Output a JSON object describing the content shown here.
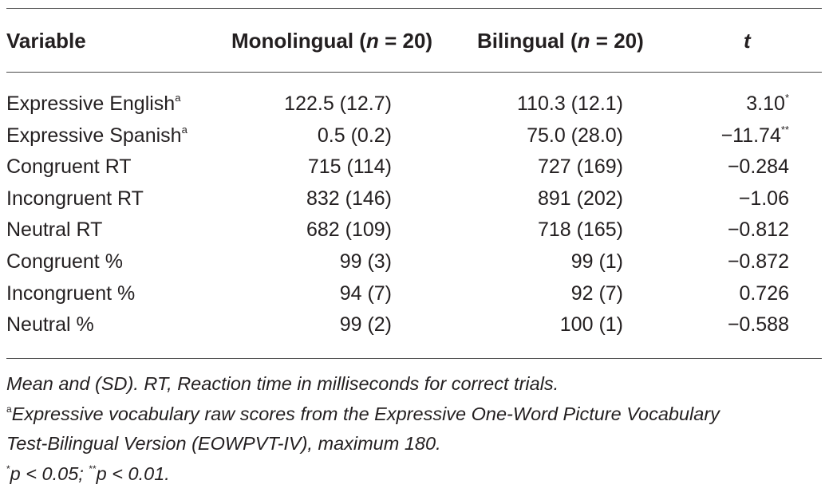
{
  "header": {
    "variable": "Variable",
    "mono_prefix": "Monolingual (",
    "mono_n": "n",
    "mono_suffix": " = 20)",
    "bi_prefix": "Bilingual (",
    "bi_n": "n",
    "bi_suffix": " = 20)",
    "t": "t"
  },
  "rows": [
    {
      "variable": "Expressive English",
      "var_sup": "a",
      "mono": "122.5 (12.7)",
      "bi": "110.3 (12.1)",
      "t": "3.10",
      "t_sup": "*"
    },
    {
      "variable": "Expressive Spanish",
      "var_sup": "a",
      "mono": "0.5 (0.2)",
      "bi": "75.0 (28.0)",
      "t": "−11.74",
      "t_sup": "**"
    },
    {
      "variable": "Congruent RT",
      "var_sup": "",
      "mono": "715 (114)",
      "bi": "727 (169)",
      "t": "−0.284",
      "t_sup": ""
    },
    {
      "variable": "Incongruent RT",
      "var_sup": "",
      "mono": "832 (146)",
      "bi": "891 (202)",
      "t": "−1.06",
      "t_sup": ""
    },
    {
      "variable": "Neutral RT",
      "var_sup": "",
      "mono": "682 (109)",
      "bi": "718 (165)",
      "t": "−0.812",
      "t_sup": ""
    },
    {
      "variable": "Congruent %",
      "var_sup": "",
      "mono": "99 (3)",
      "bi": "99 (1)",
      "t": "−0.872",
      "t_sup": ""
    },
    {
      "variable": "Incongruent %",
      "var_sup": "",
      "mono": "94 (7)",
      "bi": "92 (7)",
      "t": "0.726",
      "t_sup": ""
    },
    {
      "variable": "Neutral %",
      "var_sup": "",
      "mono": "99 (2)",
      "bi": "100 (1)",
      "t": "−0.588",
      "t_sup": ""
    }
  ],
  "notes": {
    "line1": "Mean and (SD). RT, Reaction time in milliseconds for correct trials.",
    "line2_sup": "a",
    "line2": "Expressive vocabulary raw scores from the Expressive One-Word Picture Vocabulary",
    "line3": "Test-Bilingual Version (EOWPVT-IV), maximum 180.",
    "line4_sup1": "*",
    "line4_part1": "p < 0.05; ",
    "line4_sup2": "**",
    "line4_part2": "p < 0.01."
  }
}
